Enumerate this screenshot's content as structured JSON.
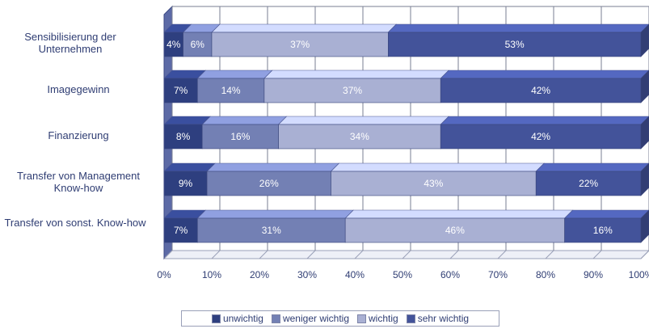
{
  "chart_data": {
    "type": "bar",
    "orientation": "horizontal",
    "stacked": true,
    "percent": true,
    "categories": [
      "Sensibilisierung der Unternehmen",
      "Imagegewinn",
      "Finanzierung",
      "Transfer von Management Know-how",
      "Transfer von sonst. Know-how"
    ],
    "series": [
      {
        "name": "unwichtig",
        "color": "#2e3f7f",
        "values": [
          4,
          7,
          8,
          9,
          7
        ],
        "labels": [
          "4%",
          "7%",
          "8%",
          "9%",
          "7%"
        ]
      },
      {
        "name": "weniger wichtig",
        "color": "#7380b4",
        "values": [
          6,
          14,
          16,
          26,
          31
        ],
        "labels": [
          "6%",
          "14%",
          "16%",
          "26%",
          "31%"
        ]
      },
      {
        "name": "wichtig",
        "color": "#a9b0d3",
        "values": [
          37,
          37,
          34,
          43,
          46
        ],
        "labels": [
          "37%",
          "37%",
          "34%",
          "43%",
          "46%"
        ]
      },
      {
        "name": "sehr wichtig",
        "color": "#43539a",
        "values": [
          53,
          42,
          42,
          22,
          16
        ],
        "labels": [
          "53%",
          "42%",
          "42%",
          "22%",
          "16%"
        ]
      }
    ],
    "x_ticks": [
      "0%",
      "10%",
      "20%",
      "30%",
      "40%",
      "50%",
      "60%",
      "70%",
      "80%",
      "90%",
      "100%"
    ],
    "xlim": [
      0,
      100
    ],
    "grid": true,
    "legend_position": "bottom"
  }
}
